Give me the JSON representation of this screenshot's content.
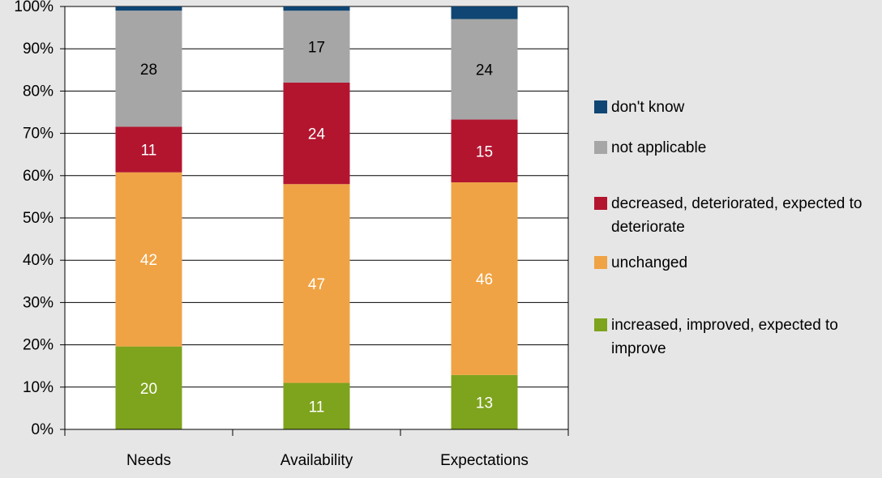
{
  "chart_data": {
    "type": "bar",
    "stacked": true,
    "percent_stacked": true,
    "categories": [
      "Needs",
      "Availability",
      "Expectations"
    ],
    "series": [
      {
        "name": "increased, improved, expected to improve",
        "color": "#7ea31d",
        "values": [
          20,
          11,
          13
        ],
        "labels": [
          "20",
          "11",
          "13"
        ]
      },
      {
        "name": "unchanged",
        "color": "#f0a344",
        "values": [
          42,
          47,
          46
        ],
        "labels": [
          "42",
          "47",
          "46"
        ]
      },
      {
        "name": "decreased, deteriorated, expected to deteriorate",
        "color": "#b3152f",
        "values": [
          11,
          24,
          15
        ],
        "labels": [
          "11",
          "24",
          "15"
        ]
      },
      {
        "name": "not applicable",
        "color": "#a6a6a6",
        "values": [
          28,
          17,
          24
        ],
        "labels": [
          "28",
          "17",
          "24"
        ]
      },
      {
        "name": "don't know",
        "color": "#0f4673",
        "values": [
          1,
          1,
          3
        ],
        "labels": [
          "",
          "",
          ""
        ]
      }
    ],
    "yticks": [
      "0%",
      "10%",
      "20%",
      "30%",
      "40%",
      "50%",
      "60%",
      "70%",
      "80%",
      "90%",
      "100%"
    ],
    "ylim": [
      0,
      100
    ],
    "grid": true,
    "legend_position": "right",
    "legend_order": [
      "don't know",
      "not applicable",
      "decreased, deteriorated, expected to deteriorate",
      "unchanged",
      "increased, improved, expected to improve"
    ]
  }
}
